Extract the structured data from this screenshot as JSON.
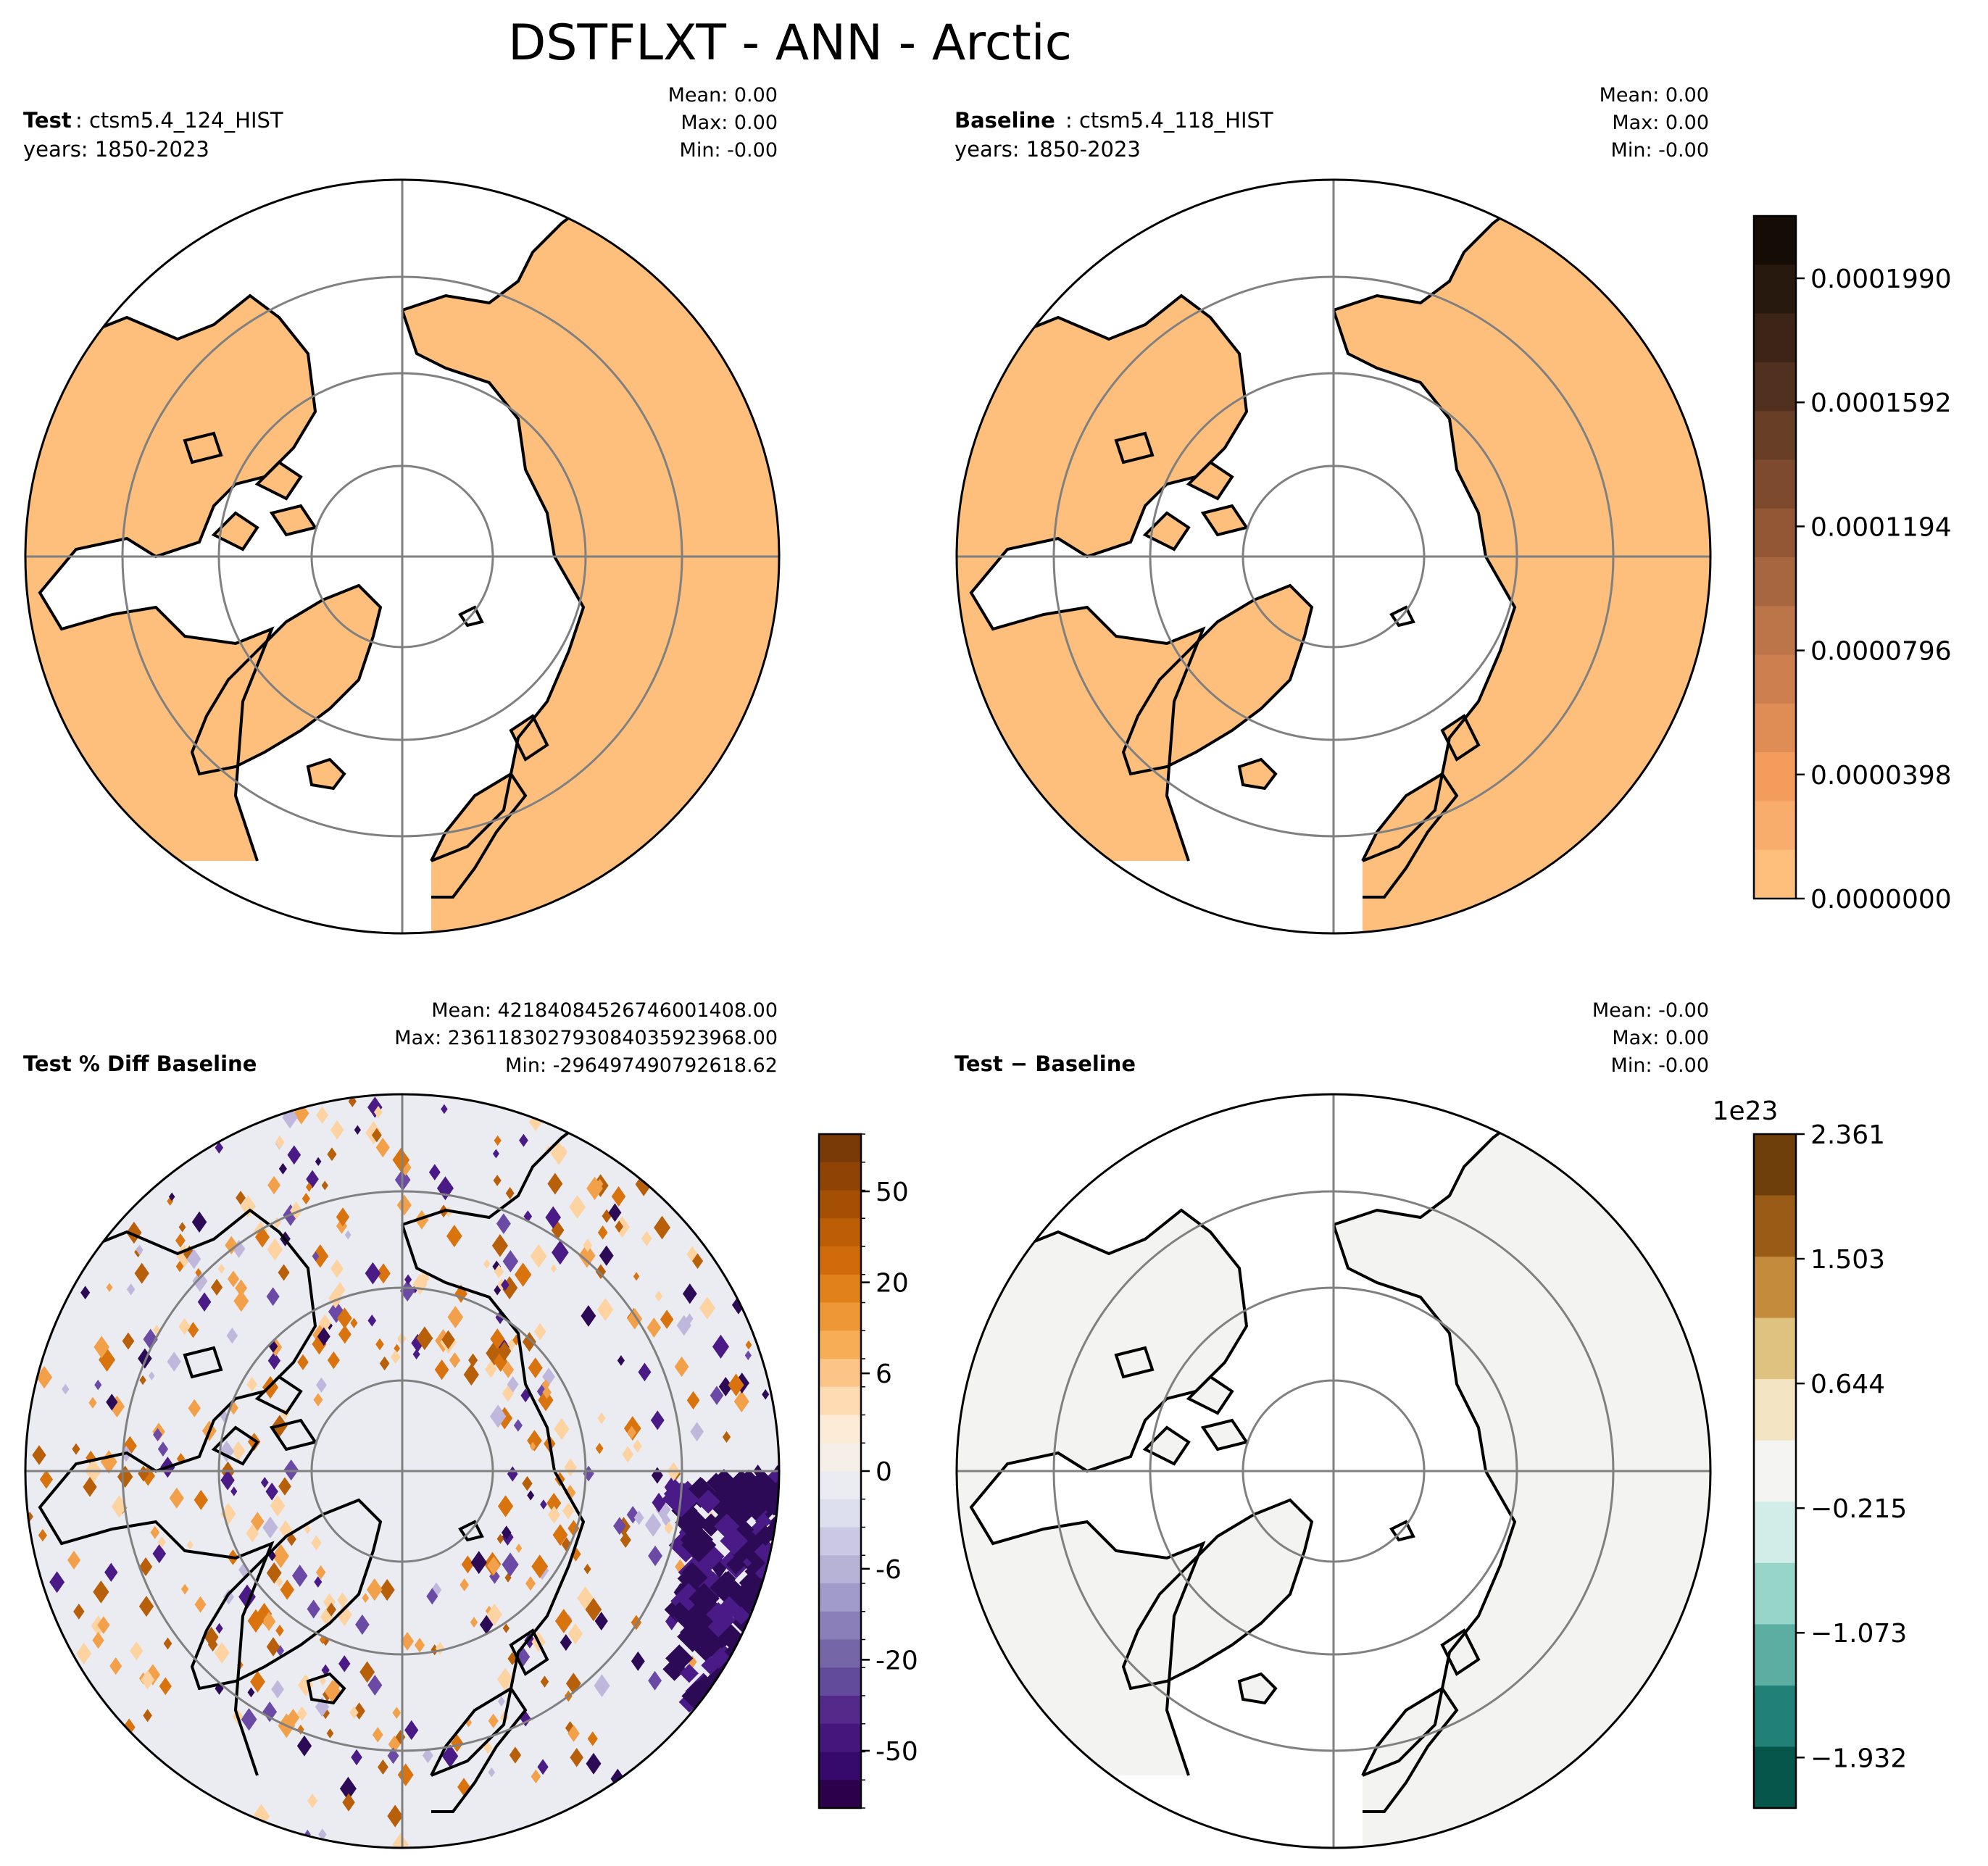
{
  "title": "DSTFLXT - ANN - Arctic",
  "colors": {
    "land_fill": "#fdbf7b",
    "pct_diff_bg": "#ebecf2",
    "diff_bg": "#f3f3f1",
    "grid": "#808080",
    "coast": "#000000",
    "pct_pos": "#d9730d",
    "pct_neg": "#4a1a86"
  },
  "panels": {
    "test": {
      "label_bold": "Test",
      "label_rest": ": ctsm5.4_124_HIST",
      "years": "years: 1850-2023",
      "mean": "Mean:  0.00",
      "max": "Max:  0.00",
      "min": "Min: -0.00"
    },
    "baseline": {
      "label_bold": "Baseline",
      "label_rest": ": ctsm5.4_118_HIST",
      "years": "years: 1850-2023",
      "mean": "Mean:  0.00",
      "max": "Max:  0.00",
      "min": "Min: -0.00"
    },
    "pct_diff": {
      "label_bold": "Test % Diff Baseline",
      "mean": "Mean: 42184084526746001408.00",
      "max": "Max: 236118302793084035923968.00",
      "min": "Min: -296497490792618.62"
    },
    "diff": {
      "label_bold": "Test − Baseline",
      "mean": "Mean: -0.00",
      "max": "Max:  0.00",
      "min": "Min: -0.00"
    }
  },
  "colorbars": {
    "top": {
      "ticks": [
        "0.0000000",
        "0.0000398",
        "0.0000796",
        "0.0001194",
        "0.0001592",
        "0.0001990"
      ],
      "tick_values": [
        0,
        3.98e-05,
        7.96e-05,
        0.0001194,
        0.0001592,
        0.000199
      ],
      "range": [
        0,
        0.000219
      ],
      "colors": [
        "#fdbf7b",
        "#f9ad6c",
        "#f39c5c",
        "#e08c55",
        "#ce7f4f",
        "#bc7449",
        "#a86640",
        "#945736",
        "#7e4a2e",
        "#683e27",
        "#52301f",
        "#3c2417",
        "#28190f",
        "#140c05"
      ]
    },
    "pct": {
      "ticks": [
        "50",
        "20",
        "6",
        "0",
        "-6",
        "-20",
        "-50"
      ],
      "colors": [
        "#7a3a08",
        "#8f4406",
        "#a54f05",
        "#bd5d06",
        "#d06b0b",
        "#e08119",
        "#ed9736",
        "#f6ad56",
        "#fcc587",
        "#fedbb2",
        "#fdebd7",
        "#f5efe7",
        "#ebecf2",
        "#dedfee",
        "#cac8e2",
        "#b7b3d7",
        "#a19bc9",
        "#8a7fb9",
        "#7566a8",
        "#634b9b",
        "#532a8a",
        "#45167c",
        "#36096c",
        "#2d004b"
      ]
    },
    "diff": {
      "exponent": "1e23",
      "ticks": [
        "2.361",
        "1.503",
        "0.644",
        "−0.215",
        "−1.073",
        "−1.932"
      ],
      "colors": [
        "#6e3f0b",
        "#9a5b16",
        "#c48b3c",
        "#dfc27f",
        "#f3e4c3",
        "#f4f4f2",
        "#d2ece7",
        "#98d5c9",
        "#5caea3",
        "#218077",
        "#07564c"
      ]
    }
  }
}
